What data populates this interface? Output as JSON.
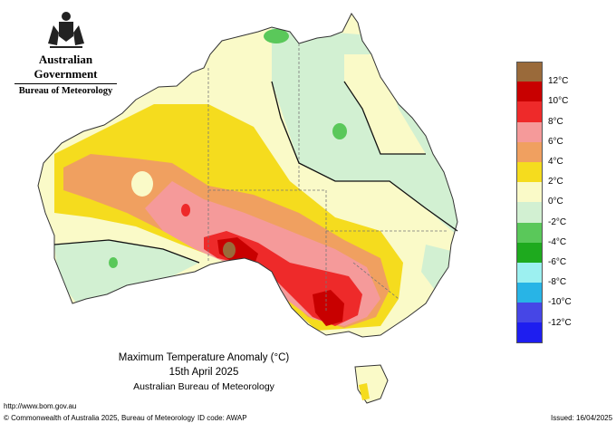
{
  "header": {
    "government": "Australian Government",
    "bureau": "Bureau of Meteorology"
  },
  "map": {
    "title": "Maximum Temperature Anomaly (°C)",
    "date": "15th April 2025",
    "source": "Australian Bureau of Meteorology"
  },
  "legend": {
    "labels": [
      "12°C",
      "10°C",
      "8°C",
      "6°C",
      "4°C",
      "2°C",
      "0°C",
      "-2°C",
      "-4°C",
      "-6°C",
      "-8°C",
      "-10°C",
      "-12°C"
    ],
    "colors": [
      "#9a6a3a",
      "#c80000",
      "#ee2a2a",
      "#f59a9a",
      "#f0a060",
      "#f5dc1e",
      "#fafac8",
      "#d2f0d2",
      "#5ac85a",
      "#1eaa1e",
      "#9cf0f0",
      "#28b4e6",
      "#4646e6",
      "#1e1ef0"
    ]
  },
  "footer": {
    "url": "http://www.bom.gov.au",
    "copyright": "© Commonwealth of Australia 2025, Bureau of Meteorology",
    "id_code": "ID code: AWAP",
    "issued": "Issued: 16/04/2025"
  }
}
